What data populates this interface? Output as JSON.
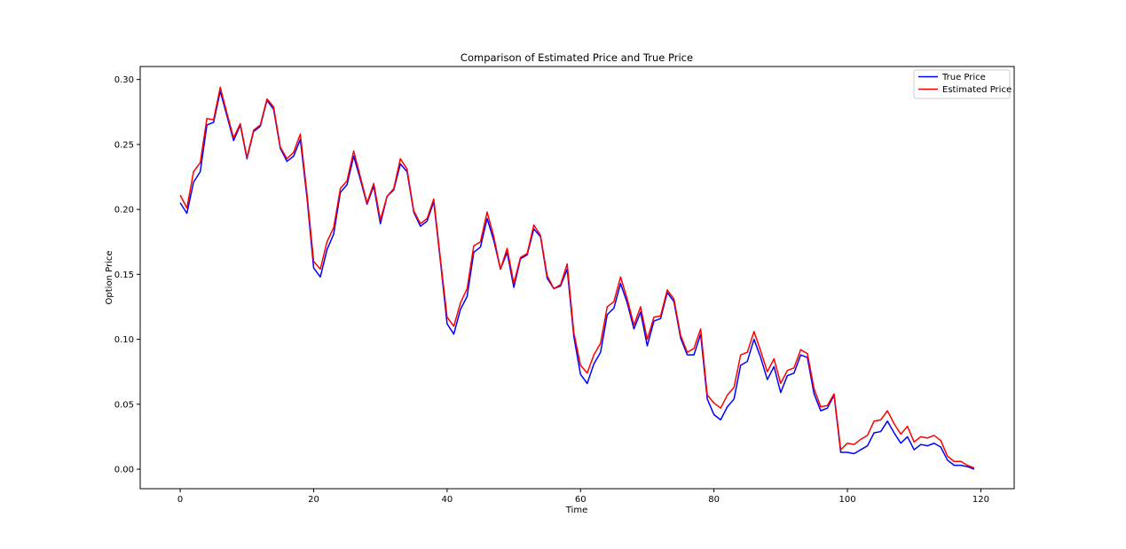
{
  "chart_data": {
    "type": "line",
    "title": "Comparison of Estimated Price and True Price",
    "xlabel": "Time",
    "ylabel": "Option Price",
    "xlim": [
      -6,
      125
    ],
    "ylim": [
      -0.015,
      0.31
    ],
    "x_ticks": [
      0,
      20,
      40,
      60,
      80,
      100,
      120
    ],
    "x_tick_labels": [
      "0",
      "20",
      "40",
      "60",
      "80",
      "100",
      "120"
    ],
    "y_ticks": [
      0.0,
      0.05,
      0.1,
      0.15,
      0.2,
      0.25,
      0.3
    ],
    "y_tick_labels": [
      "0.00",
      "0.05",
      "0.10",
      "0.15",
      "0.20",
      "0.25",
      "0.30"
    ],
    "grid": false,
    "legend_position": "top-right",
    "x": [
      0,
      1,
      2,
      3,
      4,
      5,
      6,
      7,
      8,
      9,
      10,
      11,
      12,
      13,
      14,
      15,
      16,
      17,
      18,
      19,
      20,
      21,
      22,
      23,
      24,
      25,
      26,
      27,
      28,
      29,
      30,
      31,
      32,
      33,
      34,
      35,
      36,
      37,
      38,
      39,
      40,
      41,
      42,
      43,
      44,
      45,
      46,
      47,
      48,
      49,
      50,
      51,
      52,
      53,
      54,
      55,
      56,
      57,
      58,
      59,
      60,
      61,
      62,
      63,
      64,
      65,
      66,
      67,
      68,
      69,
      70,
      71,
      72,
      73,
      74,
      75,
      76,
      77,
      78,
      79,
      80,
      81,
      82,
      83,
      84,
      85,
      86,
      87,
      88,
      89,
      90,
      91,
      92,
      93,
      94,
      95,
      96,
      97,
      98,
      99,
      100,
      101,
      102,
      103,
      104,
      105,
      106,
      107,
      108,
      109,
      110,
      111,
      112,
      113,
      114,
      115,
      116,
      117,
      118,
      119
    ],
    "series": [
      {
        "name": "True Price",
        "color": "#0000ff",
        "values": [
          0.205,
          0.197,
          0.221,
          0.229,
          0.265,
          0.267,
          0.291,
          0.272,
          0.253,
          0.265,
          0.239,
          0.26,
          0.264,
          0.284,
          0.277,
          0.247,
          0.237,
          0.241,
          0.254,
          0.209,
          0.155,
          0.148,
          0.169,
          0.181,
          0.213,
          0.219,
          0.241,
          0.223,
          0.204,
          0.218,
          0.189,
          0.21,
          0.215,
          0.235,
          0.229,
          0.198,
          0.187,
          0.191,
          0.206,
          0.16,
          0.112,
          0.104,
          0.123,
          0.133,
          0.167,
          0.171,
          0.193,
          0.176,
          0.154,
          0.167,
          0.14,
          0.162,
          0.165,
          0.185,
          0.179,
          0.147,
          0.139,
          0.141,
          0.154,
          0.102,
          0.073,
          0.066,
          0.081,
          0.09,
          0.119,
          0.124,
          0.143,
          0.128,
          0.108,
          0.121,
          0.095,
          0.114,
          0.116,
          0.136,
          0.129,
          0.101,
          0.088,
          0.088,
          0.104,
          0.054,
          0.042,
          0.038,
          0.048,
          0.054,
          0.08,
          0.083,
          0.1,
          0.086,
          0.069,
          0.079,
          0.059,
          0.072,
          0.074,
          0.088,
          0.086,
          0.058,
          0.045,
          0.047,
          0.057,
          0.013,
          0.013,
          0.012,
          0.015,
          0.018,
          0.028,
          0.029,
          0.037,
          0.028,
          0.02,
          0.025,
          0.015,
          0.019,
          0.018,
          0.02,
          0.017,
          0.007,
          0.003,
          0.003,
          0.002,
          0.0
        ]
      },
      {
        "name": "Estimated Price",
        "color": "#ff0000",
        "values": [
          0.211,
          0.201,
          0.229,
          0.236,
          0.27,
          0.269,
          0.294,
          0.274,
          0.255,
          0.266,
          0.24,
          0.261,
          0.265,
          0.285,
          0.279,
          0.248,
          0.239,
          0.244,
          0.258,
          0.212,
          0.16,
          0.154,
          0.175,
          0.186,
          0.216,
          0.222,
          0.245,
          0.225,
          0.205,
          0.22,
          0.192,
          0.21,
          0.216,
          0.239,
          0.231,
          0.199,
          0.189,
          0.193,
          0.208,
          0.162,
          0.117,
          0.11,
          0.128,
          0.139,
          0.172,
          0.175,
          0.198,
          0.179,
          0.154,
          0.17,
          0.143,
          0.163,
          0.166,
          0.188,
          0.18,
          0.149,
          0.139,
          0.142,
          0.158,
          0.105,
          0.08,
          0.074,
          0.088,
          0.097,
          0.125,
          0.129,
          0.148,
          0.131,
          0.111,
          0.125,
          0.1,
          0.117,
          0.118,
          0.138,
          0.131,
          0.103,
          0.09,
          0.093,
          0.108,
          0.057,
          0.051,
          0.047,
          0.057,
          0.063,
          0.088,
          0.09,
          0.106,
          0.091,
          0.075,
          0.085,
          0.066,
          0.076,
          0.078,
          0.092,
          0.089,
          0.062,
          0.048,
          0.049,
          0.058,
          0.015,
          0.02,
          0.019,
          0.023,
          0.026,
          0.037,
          0.038,
          0.045,
          0.035,
          0.027,
          0.033,
          0.021,
          0.025,
          0.024,
          0.026,
          0.022,
          0.01,
          0.006,
          0.006,
          0.003,
          0.001
        ]
      }
    ]
  }
}
